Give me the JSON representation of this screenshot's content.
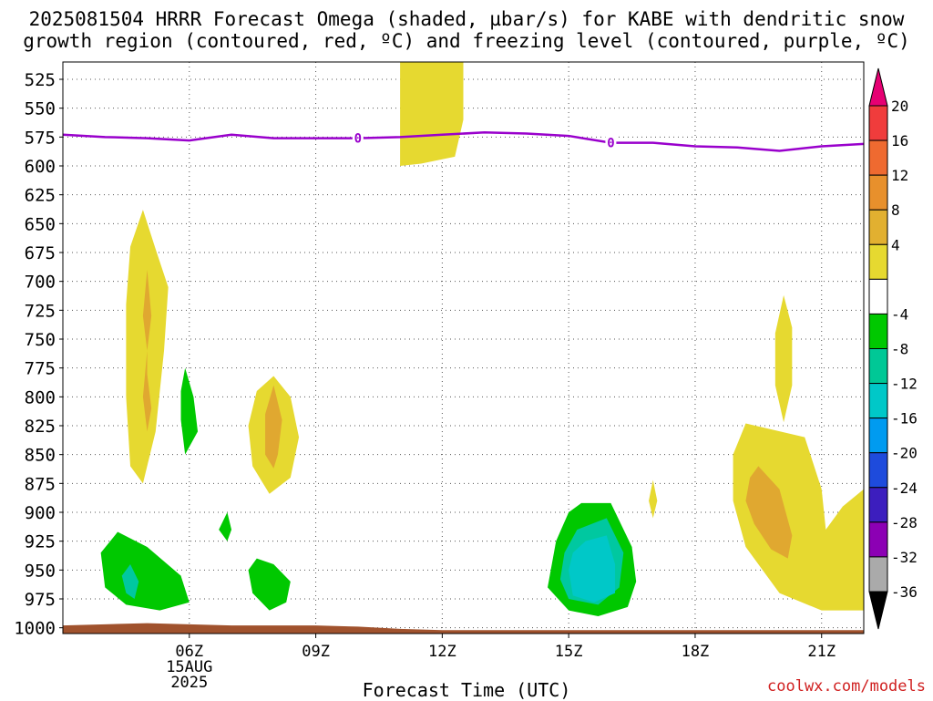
{
  "title_line1": "2025081504 HRRR Forecast Omega (shaded, µbar/s) for KABE with dendritic snow",
  "title_line2": "growth region (contoured, red, ºC) and freezing level (contoured, purple, ºC)",
  "credit": "coolwx.com/models",
  "colors": {
    "freezing_line": "#9900cc",
    "terrain": "#a0522d",
    "yellow": "#e6d930",
    "orange": "#e0a830",
    "green": "#00c800",
    "teal": "#00c8a0",
    "cyan": "#00c8c8"
  },
  "chart_data": {
    "type": "heatmap",
    "xlabel": "Forecast Time (UTC)",
    "ylabel": "",
    "x_ticks": [
      "06Z",
      "09Z",
      "12Z",
      "15Z",
      "18Z",
      "21Z"
    ],
    "x_subticks": [
      "15AUG",
      "2025"
    ],
    "xlim_hours": [
      3.0,
      22.0
    ],
    "y_ticks": [
      525,
      550,
      575,
      600,
      625,
      650,
      675,
      700,
      725,
      750,
      775,
      800,
      825,
      850,
      875,
      900,
      925,
      950,
      975,
      1000
    ],
    "ylim_hpa": [
      510,
      1005
    ],
    "grid": true,
    "legend_placement": "right",
    "colorbar": {
      "labels": [
        "20",
        "16",
        "12",
        "8",
        "4",
        "-4",
        "-8",
        "-12",
        "-16",
        "-20",
        "-24",
        "-28",
        "-32",
        "-36"
      ],
      "colors": [
        "#e60073",
        "#f03c3c",
        "#ef6a30",
        "#e8902c",
        "#e2b030",
        "#e6d930",
        "#ffffff",
        "#00c800",
        "#00c896",
        "#00c8c8",
        "#009bf0",
        "#1e4bdc",
        "#3c1ebe",
        "#8c00b4",
        "#aaaaaa",
        "#000000"
      ]
    },
    "freezing_level": {
      "label": "0",
      "x_hours": [
        3.0,
        4.0,
        5.0,
        6.0,
        7.0,
        8.0,
        9.0,
        10.0,
        11.0,
        12.0,
        13.0,
        14.0,
        15.0,
        16.0,
        17.0,
        18.0,
        19.0,
        20.0,
        21.0,
        22.0
      ],
      "y_hpa": [
        573,
        575,
        576,
        578,
        573,
        576,
        576,
        576,
        575,
        573,
        571,
        572,
        574,
        580,
        580,
        583,
        584,
        587,
        583,
        581
      ]
    },
    "omega_regions": [
      {
        "level": "4",
        "hours": [
          [
            4.9,
            638
          ],
          [
            5.2,
            672
          ],
          [
            5.5,
            705
          ],
          [
            5.4,
            760
          ],
          [
            5.2,
            830
          ],
          [
            4.9,
            875
          ],
          [
            4.6,
            860
          ],
          [
            4.5,
            800
          ],
          [
            4.5,
            720
          ],
          [
            4.6,
            670
          ]
        ]
      },
      {
        "level": "8",
        "hours": [
          [
            5.0,
            690
          ],
          [
            5.1,
            730
          ],
          [
            5.0,
            760
          ],
          [
            5.0,
            780
          ],
          [
            5.1,
            810
          ],
          [
            5.0,
            830
          ],
          [
            4.9,
            800
          ],
          [
            5.0,
            760
          ],
          [
            4.9,
            730
          ]
        ]
      },
      {
        "level": "4",
        "hours": [
          [
            8.0,
            782
          ],
          [
            8.4,
            800
          ],
          [
            8.6,
            835
          ],
          [
            8.4,
            870
          ],
          [
            7.9,
            884
          ],
          [
            7.5,
            860
          ],
          [
            7.4,
            825
          ],
          [
            7.6,
            795
          ]
        ]
      },
      {
        "level": "8",
        "hours": [
          [
            8.0,
            790
          ],
          [
            8.2,
            820
          ],
          [
            8.1,
            850
          ],
          [
            8.0,
            862
          ],
          [
            7.8,
            850
          ],
          [
            7.8,
            815
          ]
        ]
      },
      {
        "level": "4",
        "hours": [
          [
            11.0,
            510
          ],
          [
            12.5,
            510
          ],
          [
            12.5,
            560
          ],
          [
            12.3,
            592
          ],
          [
            11.5,
            598
          ],
          [
            11.0,
            600
          ],
          [
            11.0,
            560
          ]
        ]
      },
      {
        "level": "4",
        "hours": [
          [
            17.0,
            872
          ],
          [
            17.1,
            890
          ],
          [
            17.0,
            905
          ],
          [
            16.9,
            890
          ]
        ]
      },
      {
        "level": "4",
        "hours": [
          [
            20.1,
            712
          ],
          [
            20.3,
            740
          ],
          [
            20.3,
            790
          ],
          [
            20.1,
            822
          ],
          [
            19.9,
            790
          ],
          [
            19.9,
            745
          ]
        ]
      },
      {
        "level": "4",
        "hours": [
          [
            19.2,
            823
          ],
          [
            20.6,
            835
          ],
          [
            21.0,
            880
          ],
          [
            21.1,
            915
          ],
          [
            21.5,
            895
          ],
          [
            22.0,
            880
          ],
          [
            22.0,
            985
          ],
          [
            21.0,
            985
          ],
          [
            20.0,
            970
          ],
          [
            19.2,
            930
          ],
          [
            18.9,
            890
          ],
          [
            18.9,
            850
          ]
        ]
      },
      {
        "level": "8",
        "hours": [
          [
            19.5,
            860
          ],
          [
            20.0,
            880
          ],
          [
            20.3,
            920
          ],
          [
            20.2,
            940
          ],
          [
            19.8,
            932
          ],
          [
            19.4,
            910
          ],
          [
            19.2,
            890
          ],
          [
            19.3,
            870
          ]
        ]
      },
      {
        "level": "-4",
        "hours": [
          [
            4.3,
            917
          ],
          [
            5.0,
            930
          ],
          [
            5.8,
            955
          ],
          [
            6.0,
            978
          ],
          [
            5.3,
            985
          ],
          [
            4.5,
            980
          ],
          [
            4.0,
            965
          ],
          [
            3.9,
            935
          ]
        ]
      },
      {
        "level": "-8",
        "hours": [
          [
            4.6,
            945
          ],
          [
            4.8,
            960
          ],
          [
            4.7,
            975
          ],
          [
            4.5,
            970
          ],
          [
            4.4,
            955
          ]
        ]
      },
      {
        "level": "-4",
        "hours": [
          [
            5.9,
            775
          ],
          [
            6.1,
            800
          ],
          [
            6.2,
            830
          ],
          [
            5.9,
            850
          ],
          [
            5.8,
            820
          ],
          [
            5.8,
            795
          ]
        ]
      },
      {
        "level": "-4",
        "hours": [
          [
            6.9,
            900
          ],
          [
            7.0,
            915
          ],
          [
            6.9,
            925
          ],
          [
            6.7,
            915
          ]
        ]
      },
      {
        "level": "-4",
        "hours": [
          [
            7.6,
            940
          ],
          [
            8.0,
            945
          ],
          [
            8.4,
            960
          ],
          [
            8.3,
            978
          ],
          [
            7.9,
            985
          ],
          [
            7.5,
            970
          ],
          [
            7.4,
            950
          ]
        ]
      },
      {
        "level": "-4",
        "hours": [
          [
            15.3,
            892
          ],
          [
            16.0,
            892
          ],
          [
            16.5,
            930
          ],
          [
            16.6,
            960
          ],
          [
            16.4,
            982
          ],
          [
            15.7,
            990
          ],
          [
            15.0,
            985
          ],
          [
            14.5,
            965
          ],
          [
            14.7,
            925
          ],
          [
            15.0,
            900
          ]
        ]
      },
      {
        "level": "-8",
        "hours": [
          [
            15.2,
            915
          ],
          [
            15.9,
            905
          ],
          [
            16.3,
            935
          ],
          [
            16.2,
            965
          ],
          [
            15.7,
            980
          ],
          [
            15.0,
            975
          ],
          [
            14.8,
            958
          ],
          [
            14.9,
            935
          ]
        ]
      },
      {
        "level": "-12",
        "hours": [
          [
            15.4,
            925
          ],
          [
            15.9,
            920
          ],
          [
            16.1,
            945
          ],
          [
            16.1,
            970
          ],
          [
            15.6,
            978
          ],
          [
            15.1,
            972
          ],
          [
            15.0,
            950
          ],
          [
            15.1,
            935
          ]
        ]
      }
    ],
    "terrain": {
      "x_hours": [
        3.0,
        4.0,
        5.0,
        6.0,
        7.0,
        9.0,
        10.0,
        11.0,
        12.0,
        15.0,
        18.0,
        22.0
      ],
      "y_hpa": [
        998,
        997,
        996,
        997,
        998,
        998,
        999,
        1001,
        1002,
        1002,
        1002,
        1002
      ]
    }
  }
}
